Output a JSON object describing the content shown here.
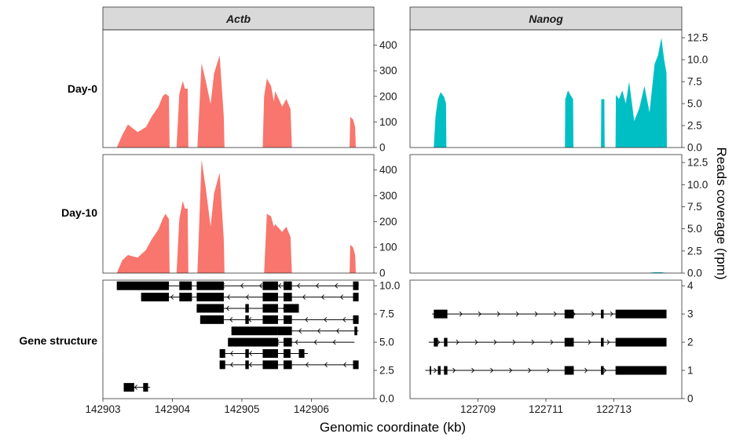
{
  "chart_data": {
    "type": "area",
    "genes": [
      "Actb",
      "Nanog"
    ],
    "rows": [
      "Day-0",
      "Day-10",
      "Gene structure"
    ],
    "xlabel": "Genomic coordinate (kb)",
    "ylabel": "Reads coverage (rpm)",
    "colors": {
      "Actb": "#f8766d",
      "Nanog": "#00bfc4",
      "strip": "#d9d9d9",
      "gene": "#000000"
    },
    "panels": {
      "Actb": {
        "xlim": [
          142903.0,
          142906.9
        ],
        "x_ticks": [
          142903,
          142904,
          142905,
          142906
        ],
        "coverage_ylim": [
          0,
          460
        ],
        "coverage_ticks": [
          "0",
          "100",
          "200",
          "300",
          "400"
        ],
        "structure_ylim": [
          0,
          10.5
        ],
        "structure_ticks": [
          "0.0",
          "2.5",
          "5.0",
          "7.5",
          "10.0"
        ],
        "series": [
          {
            "name": "Day-0",
            "x": [
              142903.2,
              142903.28,
              142903.36,
              142903.5,
              142903.62,
              142903.7,
              142903.8,
              142903.86,
              142903.9,
              142903.95,
              142903.96,
              142904.06,
              142904.1,
              142904.15,
              142904.18,
              142904.22,
              142904.23,
              142904.36,
              142904.42,
              142904.48,
              142904.55,
              142904.6,
              142904.68,
              142904.74,
              142904.75,
              142904.95,
              142904.96,
              142905.0,
              142905.1,
              142905.22,
              142905.3,
              142905.32,
              142905.36,
              142905.42,
              142905.46,
              142905.48,
              142905.58,
              142905.64,
              142905.7,
              142905.72,
              142906.55,
              142906.56,
              142906.6,
              142906.63,
              142906.64
            ],
            "y": [
              0,
              50,
              90,
              60,
              80,
              120,
              160,
              200,
              210,
              200,
              0,
              0,
              210,
              260,
              230,
              230,
              0,
              0,
              330,
              260,
              170,
              290,
              360,
              120,
              0,
              0,
              0,
              0,
              0,
              0,
              0,
              200,
              270,
              240,
              180,
              220,
              160,
              190,
              150,
              0,
              0,
              120,
              110,
              80,
              0
            ]
          },
          {
            "name": "Day-10",
            "x": [
              142903.2,
              142903.28,
              142903.36,
              142903.5,
              142903.62,
              142903.7,
              142903.8,
              142903.86,
              142903.9,
              142903.95,
              142903.96,
              142904.06,
              142904.1,
              142904.15,
              142904.18,
              142904.22,
              142904.23,
              142904.36,
              142904.42,
              142904.48,
              142904.55,
              142904.6,
              142904.68,
              142904.74,
              142904.75,
              142905.32,
              142905.36,
              142905.42,
              142905.46,
              142905.48,
              142905.58,
              142905.64,
              142905.7,
              142905.72,
              142906.55,
              142906.56,
              142906.6,
              142906.63,
              142906.64
            ],
            "y": [
              0,
              50,
              70,
              60,
              90,
              130,
              170,
              210,
              230,
              210,
              0,
              0,
              210,
              280,
              250,
              250,
              0,
              0,
              440,
              330,
              180,
              310,
              390,
              130,
              0,
              0,
              230,
              220,
              180,
              190,
              160,
              180,
              140,
              0,
              0,
              110,
              100,
              70,
              0
            ]
          }
        ],
        "transcripts": [
          {
            "y": 10,
            "start": 142903.2,
            "end": 142906.68,
            "blocks": [
              [
                142903.2,
                142903.95
              ],
              [
                142904.1,
                142904.28
              ],
              [
                142904.35,
                142904.74
              ],
              [
                142905.3,
                142905.52
              ],
              [
                142905.6,
                142905.72
              ],
              [
                142906.6,
                142906.68
              ]
            ]
          },
          {
            "y": 9,
            "start": 142903.55,
            "end": 142906.68,
            "blocks": [
              [
                142903.55,
                142903.95
              ],
              [
                142904.1,
                142904.28
              ],
              [
                142904.35,
                142904.74
              ],
              [
                142905.3,
                142905.52
              ],
              [
                142905.6,
                142905.72
              ],
              [
                142906.6,
                142906.68
              ]
            ]
          },
          {
            "y": 8,
            "start": 142904.35,
            "end": 142905.82,
            "blocks": [
              [
                142904.35,
                142904.74
              ],
              [
                142905.05,
                142905.1
              ],
              [
                142905.3,
                142905.52
              ],
              [
                142905.6,
                142905.82
              ]
            ]
          },
          {
            "y": 7,
            "start": 142904.4,
            "end": 142906.68,
            "blocks": [
              [
                142904.4,
                142904.74
              ],
              [
                142905.05,
                142905.1
              ],
              [
                142905.3,
                142905.52
              ],
              [
                142905.6,
                142905.72
              ],
              [
                142906.6,
                142906.68
              ]
            ]
          },
          {
            "y": 6,
            "start": 142904.85,
            "end": 142906.68,
            "blocks": [
              [
                142904.85,
                142905.52
              ],
              [
                142905.52,
                142905.72
              ],
              [
                142906.62,
                142906.66
              ]
            ]
          },
          {
            "y": 5,
            "start": 142904.8,
            "end": 142906.62,
            "blocks": [
              [
                142904.8,
                142905.52
              ],
              [
                142905.6,
                142905.72
              ]
            ]
          },
          {
            "y": 4,
            "start": 142904.68,
            "end": 142905.95,
            "blocks": [
              [
                142904.68,
                142904.76
              ],
              [
                142905.05,
                142905.1
              ],
              [
                142905.3,
                142905.52
              ],
              [
                142905.6,
                142905.7
              ],
              [
                142905.82,
                142905.9
              ]
            ]
          },
          {
            "y": 3,
            "start": 142904.68,
            "end": 142906.68,
            "blocks": [
              [
                142904.68,
                142904.76
              ],
              [
                142905.05,
                142905.1
              ],
              [
                142905.3,
                142905.52
              ],
              [
                142905.6,
                142905.72
              ],
              [
                142906.6,
                142906.68
              ]
            ]
          },
          {
            "y": 1,
            "start": 142903.3,
            "end": 142903.68,
            "blocks": [
              [
                142903.3,
                142903.45
              ],
              [
                142903.58,
                142903.65
              ]
            ]
          }
        ]
      },
      "Nanog": {
        "xlim": [
          122707.0,
          122715.0
        ],
        "x_ticks": [
          122709,
          122711,
          122713
        ],
        "coverage_ylim": [
          0,
          13.4
        ],
        "coverage_ticks": [
          "0.0",
          "2.5",
          "5.0",
          "7.5",
          "10.0",
          "12.5"
        ],
        "structure_ylim": [
          0,
          4.2
        ],
        "structure_ticks": [
          "0",
          "1",
          "2",
          "3",
          "4"
        ],
        "series": [
          {
            "name": "Day-0",
            "x": [
              122707.7,
              122707.75,
              122707.82,
              122707.9,
              122708.0,
              122708.06,
              122708.07,
              122711.56,
              122711.57,
              122711.65,
              122711.72,
              122711.8,
              122711.81,
              122712.62,
              122712.63,
              122712.72,
              122712.73,
              122713.05,
              122713.06,
              122713.15,
              122713.25,
              122713.35,
              122713.45,
              122713.6,
              122713.75,
              122713.9,
              122714.05,
              122714.2,
              122714.3,
              122714.4,
              122714.48,
              122714.55,
              122714.56
            ],
            "y": [
              0,
              3.5,
              5.5,
              6.3,
              5.8,
              5.0,
              0,
              0,
              5.5,
              6.5,
              6.0,
              5.5,
              0,
              0,
              5.5,
              5.5,
              0,
              0,
              6.0,
              5.5,
              6.5,
              5.0,
              7.5,
              3.0,
              4.5,
              7.0,
              4.0,
              9.5,
              10.5,
              12.5,
              10.0,
              8.5,
              0
            ]
          },
          {
            "name": "Day-10",
            "x": [
              122714.0,
              122714.2,
              122714.4,
              122714.55
            ],
            "y": [
              0,
              0.1,
              0.1,
              0
            ]
          }
        ],
        "transcripts": [
          {
            "y": 3,
            "start": 122707.65,
            "end": 122714.55,
            "dir": 1,
            "blocks": [
              [
                122707.7,
                122708.1
              ],
              [
                122711.55,
                122711.82
              ],
              [
                122712.62,
                122712.7
              ],
              [
                122713.05,
                122714.55
              ]
            ]
          },
          {
            "y": 2,
            "start": 122707.55,
            "end": 122714.55,
            "dir": 1,
            "blocks": [
              [
                122707.7,
                122707.82
              ],
              [
                122708.0,
                122708.1
              ],
              [
                122711.55,
                122711.82
              ],
              [
                122712.62,
                122712.7
              ],
              [
                122713.05,
                122714.55
              ]
            ]
          },
          {
            "y": 1,
            "start": 122707.45,
            "end": 122714.55,
            "dir": 1,
            "blocks": [
              [
                122707.58,
                122707.62
              ],
              [
                122707.82,
                122707.9
              ],
              [
                122708.0,
                122708.1
              ],
              [
                122711.55,
                122711.82
              ],
              [
                122712.62,
                122712.7
              ],
              [
                122713.05,
                122714.55
              ]
            ]
          }
        ]
      }
    }
  }
}
